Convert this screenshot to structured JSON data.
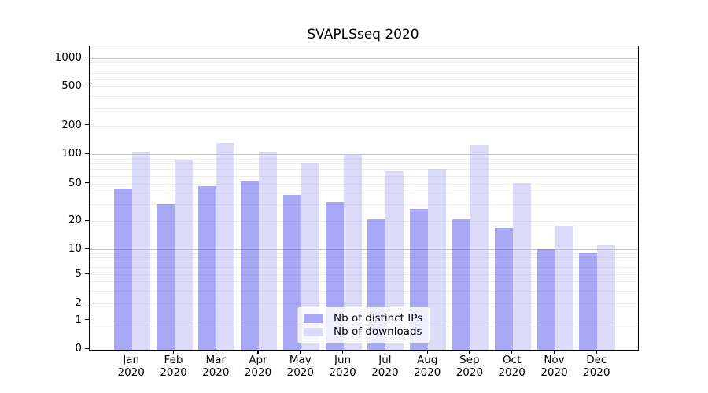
{
  "chart_data": {
    "type": "bar",
    "title": "SVAPLSseq 2020",
    "categories": [
      "Jan 2020",
      "Feb 2020",
      "Mar 2020",
      "Apr 2020",
      "May 2020",
      "Jun 2020",
      "Jul 2020",
      "Aug 2020",
      "Sep 2020",
      "Oct 2020",
      "Nov 2020",
      "Dec 2020"
    ],
    "series": [
      {
        "name": "Nb of distinct IPs",
        "values": [
          44,
          30,
          47,
          54,
          38,
          32,
          21,
          27,
          21,
          17,
          10,
          9
        ],
        "color": "#5151ee",
        "fill_opacity": 0.5,
        "legend_color": "#a8a8f6"
      },
      {
        "name": "Nb of downloads",
        "values": [
          106,
          88,
          131,
          105,
          81,
          101,
          67,
          71,
          125,
          51,
          18,
          11
        ],
        "color": "#b7b7f3",
        "fill_opacity": 0.5,
        "legend_color": "#dbdbf9"
      }
    ],
    "xlabel": "",
    "ylabel": "",
    "yscale": "symlog",
    "yticks": [
      0,
      1,
      2,
      5,
      10,
      20,
      50,
      100,
      200,
      500,
      1000
    ],
    "ylim": [
      0,
      1320
    ],
    "grid": true,
    "legend_position": "lower center"
  },
  "colors": {
    "background": "#ffffff",
    "axis": "#000000",
    "major_grid": "#c4c4c4",
    "minor_grid": "#ececec",
    "legend_border": "#cccccc",
    "text": "#000000"
  }
}
